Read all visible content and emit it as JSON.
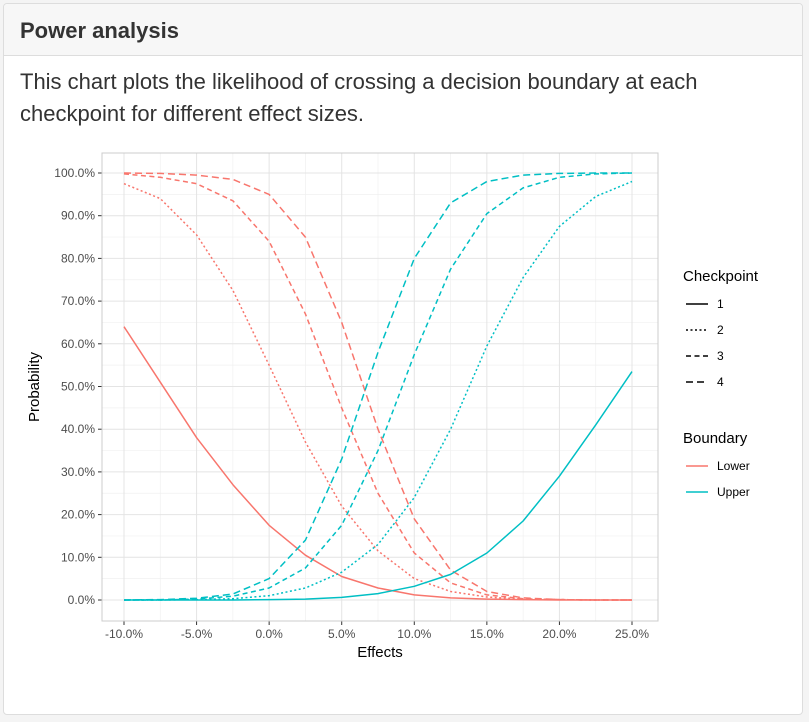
{
  "panel": {
    "title": "Power analysis",
    "description": "This chart plots the likelihood of crossing a decision boundary at each checkpoint for different effect sizes."
  },
  "chart_data": {
    "type": "line",
    "xlabel": "Effects",
    "ylabel": "Probability",
    "x": [
      -0.1,
      -0.075,
      -0.05,
      -0.025,
      0.0,
      0.025,
      0.05,
      0.075,
      0.1,
      0.125,
      0.15,
      0.175,
      0.2,
      0.225,
      0.25
    ],
    "xlim": [
      -0.1,
      0.25
    ],
    "ylim": [
      0,
      1
    ],
    "x_ticks": [
      -0.1,
      -0.05,
      0.0,
      0.05,
      0.1,
      0.15,
      0.2,
      0.25
    ],
    "x_tick_labels": [
      "-10.0%",
      "-5.0%",
      "0.0%",
      "5.0%",
      "10.0%",
      "15.0%",
      "20.0%",
      "25.0%"
    ],
    "y_ticks": [
      0,
      0.1,
      0.2,
      0.3,
      0.4,
      0.5,
      0.6,
      0.7,
      0.8,
      0.9,
      1.0
    ],
    "y_tick_labels": [
      "0.0%",
      "10.0%",
      "20.0%",
      "30.0%",
      "40.0%",
      "50.0%",
      "60.0%",
      "70.0%",
      "80.0%",
      "90.0%",
      "100.0%"
    ],
    "grid": true,
    "legend_position": "right",
    "legend": {
      "checkpoint_title": "Checkpoint",
      "checkpoint_items": [
        {
          "label": "1",
          "dash": "solid"
        },
        {
          "label": "2",
          "dash": "dotted"
        },
        {
          "label": "3",
          "dash": "dashed"
        },
        {
          "label": "4",
          "dash": "longdash"
        }
      ],
      "boundary_title": "Boundary",
      "boundary_items": [
        {
          "label": "Lower",
          "color": "#F8766D"
        },
        {
          "label": "Upper",
          "color": "#00BFC4"
        }
      ]
    },
    "series": [
      {
        "boundary": "Lower",
        "checkpoint": "1",
        "values": [
          0.64,
          0.51,
          0.38,
          0.27,
          0.175,
          0.105,
          0.055,
          0.028,
          0.012,
          0.005,
          0.002,
          0.001,
          0.0,
          0.0,
          0.0
        ]
      },
      {
        "boundary": "Lower",
        "checkpoint": "2",
        "values": [
          0.975,
          0.94,
          0.855,
          0.725,
          0.55,
          0.37,
          0.22,
          0.115,
          0.05,
          0.02,
          0.007,
          0.002,
          0.001,
          0.0,
          0.0
        ]
      },
      {
        "boundary": "Lower",
        "checkpoint": "3",
        "values": [
          0.998,
          0.99,
          0.975,
          0.935,
          0.84,
          0.67,
          0.45,
          0.25,
          0.11,
          0.04,
          0.012,
          0.003,
          0.001,
          0.0,
          0.0
        ]
      },
      {
        "boundary": "Lower",
        "checkpoint": "4",
        "values": [
          1.0,
          0.999,
          0.995,
          0.985,
          0.95,
          0.85,
          0.65,
          0.4,
          0.19,
          0.07,
          0.02,
          0.005,
          0.001,
          0.0,
          0.0
        ]
      },
      {
        "boundary": "Upper",
        "checkpoint": "1",
        "values": [
          0.0,
          0.0,
          0.0,
          0.0,
          0.001,
          0.002,
          0.006,
          0.015,
          0.032,
          0.06,
          0.11,
          0.185,
          0.29,
          0.41,
          0.535
        ]
      },
      {
        "boundary": "Upper",
        "checkpoint": "2",
        "values": [
          0.0,
          0.0,
          0.001,
          0.003,
          0.01,
          0.028,
          0.065,
          0.13,
          0.24,
          0.4,
          0.595,
          0.755,
          0.875,
          0.945,
          0.98
        ]
      },
      {
        "boundary": "Upper",
        "checkpoint": "3",
        "values": [
          0.0,
          0.0,
          0.002,
          0.009,
          0.028,
          0.075,
          0.175,
          0.35,
          0.575,
          0.775,
          0.905,
          0.965,
          0.99,
          0.998,
          1.0
        ]
      },
      {
        "boundary": "Upper",
        "checkpoint": "4",
        "values": [
          0.0,
          0.001,
          0.004,
          0.014,
          0.05,
          0.14,
          0.33,
          0.58,
          0.8,
          0.93,
          0.98,
          0.995,
          0.999,
          1.0,
          1.0
        ]
      }
    ]
  }
}
